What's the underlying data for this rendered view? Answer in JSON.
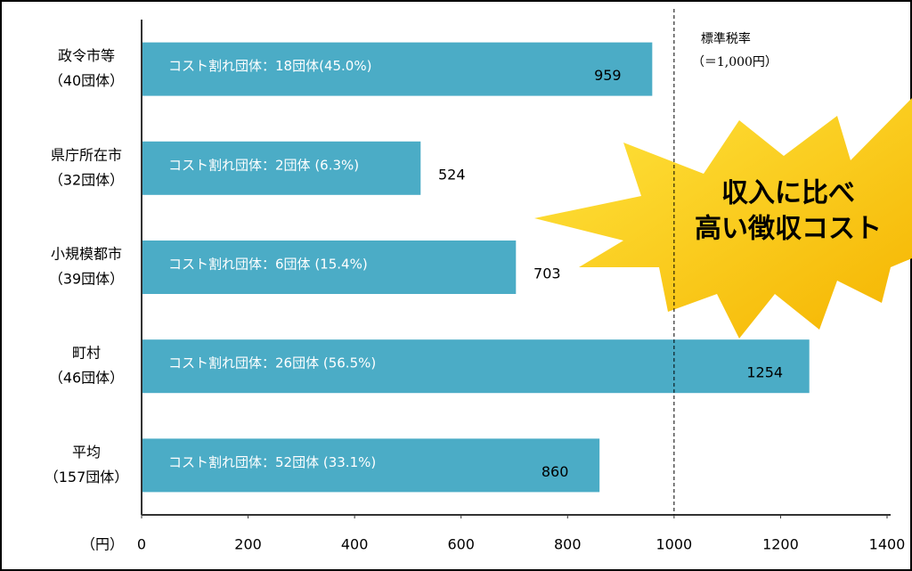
{
  "chart_data": {
    "type": "bar",
    "orientation": "horizontal",
    "categories": [
      "政令市等",
      "県庁所在市",
      "小規模都市",
      "町村",
      "平均"
    ],
    "category_counts": [
      "（40団体）",
      "（32団体）",
      "（39団体）",
      "（46団体）",
      "（157団体）"
    ],
    "bar_annotations": [
      "コスト割れ団体：18団体(45.0%)",
      "コスト割れ団体：2団体 (6.3%)",
      "コスト割れ団体：6団体 (15.4%)",
      "コスト割れ団体：26団体 (56.5%)",
      "コスト割れ団体：52団体 (33.1%)"
    ],
    "values": [
      959,
      524,
      703,
      1254,
      860
    ],
    "color": "#4bacc6",
    "xlim": [
      0,
      1400
    ],
    "xticks": [
      0,
      200,
      400,
      600,
      800,
      1000,
      1200,
      1400
    ],
    "x_unit": "（円）",
    "reference_line": {
      "value": 1000,
      "label": "標準税率",
      "sublabel": "（＝1,000円）"
    },
    "callout": [
      "収入に比べ",
      "高い徴収コスト"
    ]
  }
}
